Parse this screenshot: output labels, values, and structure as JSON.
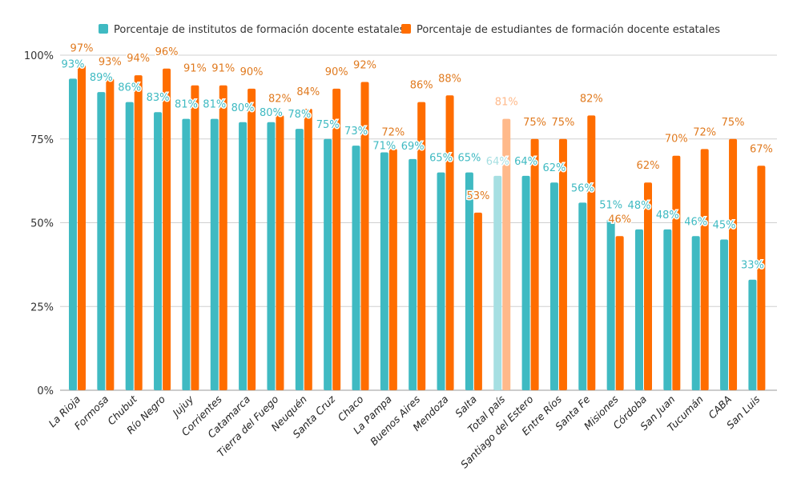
{
  "chart_data": {
    "type": "bar",
    "title": "",
    "xlabel": "",
    "ylabel": "",
    "ylim": [
      0,
      100
    ],
    "yticks": [
      "0%",
      "25%",
      "50%",
      "75%",
      "100%"
    ],
    "grid": true,
    "legend_placement": "top",
    "highlight_category": "Total país",
    "categories": [
      "La Rioja",
      "Formosa",
      "Chubut",
      "Río Negro",
      "Jujuy",
      "Corrientes",
      "Catamarca",
      "Tierra del Fuego",
      "Neuquén",
      "Santa Cruz",
      "Chaco",
      "La Pampa",
      "Buenos Aires",
      "Mendoza",
      "Salta",
      "Total país",
      "Santiago del Estero",
      "Entre Ríos",
      "Santa Fe",
      "Misiones",
      "Córdoba",
      "San Juan",
      "Tucumán",
      "CABA",
      "San Luis"
    ],
    "series": [
      {
        "name": "Porcentaje de institutos de formación docente estatales",
        "color": "#3fbac2",
        "highlight_color": "#a6dfe2",
        "values": [
          93,
          89,
          86,
          83,
          81,
          81,
          80,
          80,
          78,
          75,
          73,
          71,
          69,
          65,
          65,
          64,
          64,
          62,
          56,
          51,
          48,
          48,
          46,
          45,
          33
        ]
      },
      {
        "name": "Porcentaje de estudiantes de formación docente estatales",
        "color": "#ff6d00",
        "label_color": "#e07a1f",
        "highlight_color": "#ffb98a",
        "values": [
          97,
          93,
          94,
          96,
          91,
          91,
          90,
          82,
          84,
          90,
          92,
          72,
          86,
          88,
          53,
          81,
          75,
          75,
          82,
          46,
          62,
          70,
          72,
          75,
          67
        ]
      }
    ]
  }
}
